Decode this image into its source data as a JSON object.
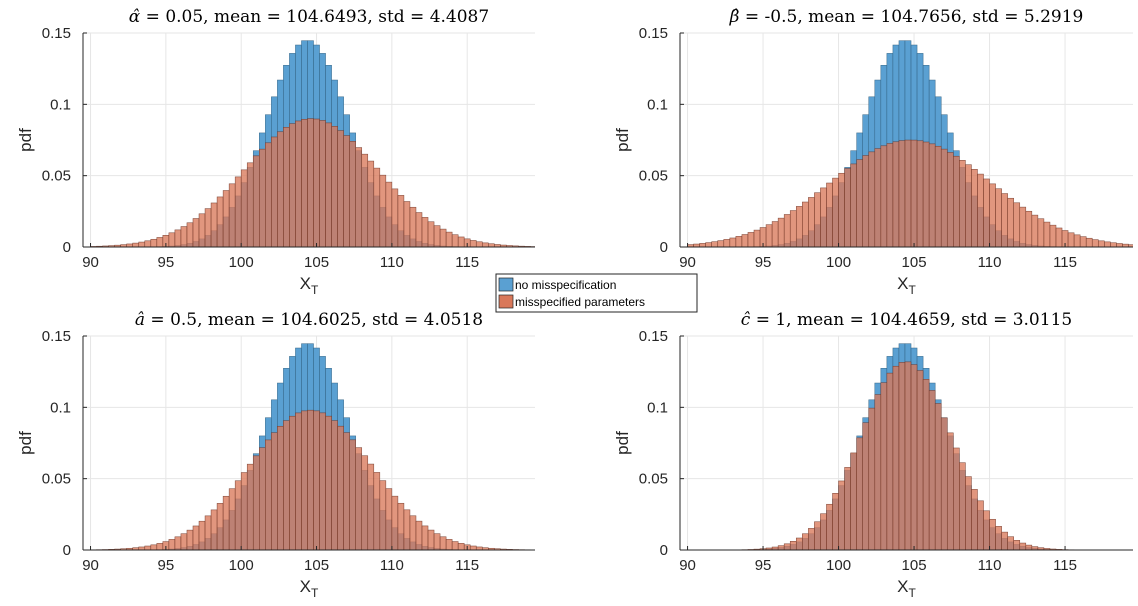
{
  "figure": {
    "legend": {
      "location": "center",
      "entries": [
        {
          "label": "no misspecification",
          "color": "#5aa0d2"
        },
        {
          "label": "misspecified parameters",
          "color": "#d9785a"
        }
      ]
    }
  },
  "chart_data": [
    {
      "type": "histogram",
      "title": "α̂ = 0.05, mean = 104.6493, std = 4.4087",
      "title_parts": {
        "symbol": "α",
        "rest": " = 0.05, mean = 104.6493, std = 4.4087"
      },
      "xlabel": "X",
      "xlabel_sub": "T",
      "ylabel": "pdf",
      "xlim": [
        89.5,
        119.5
      ],
      "ylim": [
        0,
        0.15
      ],
      "xticks": [
        "90",
        "95",
        "100",
        "105",
        "110",
        "115"
      ],
      "yticks": [
        "0",
        "0.05",
        "0.1",
        "0.15"
      ],
      "grid": true,
      "bin_width": 0.4,
      "series": [
        {
          "name": "no misspecification",
          "distribution": "normal",
          "mean": 104.4,
          "std": 2.75,
          "peak_pdf": 0.145
        },
        {
          "name": "misspecified parameters",
          "distribution": "normal",
          "mean": 104.6493,
          "std": 4.4087,
          "peak_pdf": 0.09
        }
      ]
    },
    {
      "type": "histogram",
      "title": "β̂ = -0.5, mean = 104.7656, std = 5.2919",
      "title_parts": {
        "symbol": "β",
        "rest": " = -0.5, mean = 104.7656, std = 5.2919"
      },
      "xlabel": "X",
      "xlabel_sub": "T",
      "ylabel": "pdf",
      "xlim": [
        89.5,
        119.5
      ],
      "ylim": [
        0,
        0.15
      ],
      "xticks": [
        "90",
        "95",
        "100",
        "105",
        "110",
        "115"
      ],
      "yticks": [
        "0",
        "0.05",
        "0.1",
        "0.15"
      ],
      "grid": true,
      "bin_width": 0.4,
      "series": [
        {
          "name": "no misspecification",
          "distribution": "normal",
          "mean": 104.4,
          "std": 2.75,
          "peak_pdf": 0.145
        },
        {
          "name": "misspecified parameters",
          "distribution": "normal",
          "mean": 104.7656,
          "std": 5.2919,
          "peak_pdf": 0.075
        }
      ]
    },
    {
      "type": "histogram",
      "title": "â = 0.5, mean = 104.6025, std = 4.0518",
      "title_parts": {
        "symbol": "a",
        "rest": " = 0.5, mean = 104.6025, std = 4.0518"
      },
      "xlabel": "X",
      "xlabel_sub": "T",
      "ylabel": "pdf",
      "xlim": [
        89.5,
        119.5
      ],
      "ylim": [
        0,
        0.15
      ],
      "xticks": [
        "90",
        "95",
        "100",
        "105",
        "110",
        "115"
      ],
      "yticks": [
        "0",
        "0.05",
        "0.1",
        "0.15"
      ],
      "grid": true,
      "bin_width": 0.4,
      "series": [
        {
          "name": "no misspecification",
          "distribution": "normal",
          "mean": 104.4,
          "std": 2.75,
          "peak_pdf": 0.145
        },
        {
          "name": "misspecified parameters",
          "distribution": "normal",
          "mean": 104.6025,
          "std": 4.0518,
          "peak_pdf": 0.098
        }
      ]
    },
    {
      "type": "histogram",
      "title": "ĉ = 1, mean = 104.4659, std = 3.0115",
      "title_parts": {
        "symbol": "c",
        "rest": " = 1, mean = 104.4659, std = 3.0115"
      },
      "xlabel": "X",
      "xlabel_sub": "T",
      "ylabel": "pdf",
      "xlim": [
        89.5,
        119.5
      ],
      "ylim": [
        0,
        0.15
      ],
      "xticks": [
        "90",
        "95",
        "100",
        "105",
        "110",
        "115"
      ],
      "yticks": [
        "0",
        "0.05",
        "0.1",
        "0.15"
      ],
      "grid": true,
      "bin_width": 0.4,
      "series": [
        {
          "name": "no misspecification",
          "distribution": "normal",
          "mean": 104.4,
          "std": 2.75,
          "peak_pdf": 0.145
        },
        {
          "name": "misspecified parameters",
          "distribution": "normal",
          "mean": 104.4659,
          "std": 3.0115,
          "peak_pdf": 0.132
        }
      ]
    }
  ]
}
